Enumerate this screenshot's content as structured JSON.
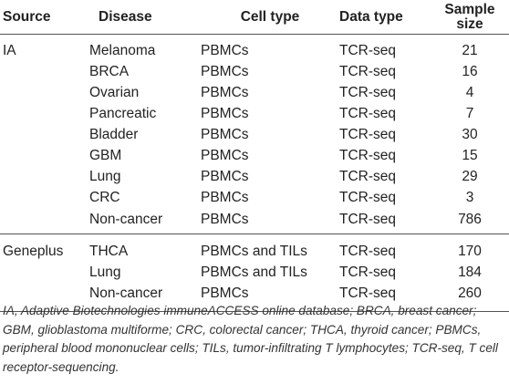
{
  "table": {
    "headers": {
      "source": "Source",
      "disease": "Disease",
      "cell_type": "Cell type",
      "data_type": "Data type",
      "sample_size": "Sample size"
    },
    "groups": [
      {
        "source": "IA",
        "rows": [
          {
            "disease": "Melanoma",
            "cell_type": "PBMCs",
            "data_type": "TCR-seq",
            "sample_size": "21"
          },
          {
            "disease": "BRCA",
            "cell_type": "PBMCs",
            "data_type": "TCR-seq",
            "sample_size": "16"
          },
          {
            "disease": "Ovarian",
            "cell_type": "PBMCs",
            "data_type": "TCR-seq",
            "sample_size": "4"
          },
          {
            "disease": "Pancreatic",
            "cell_type": "PBMCs",
            "data_type": "TCR-seq",
            "sample_size": "7"
          },
          {
            "disease": "Bladder",
            "cell_type": "PBMCs",
            "data_type": "TCR-seq",
            "sample_size": "30"
          },
          {
            "disease": "GBM",
            "cell_type": "PBMCs",
            "data_type": "TCR-seq",
            "sample_size": "15"
          },
          {
            "disease": "Lung",
            "cell_type": "PBMCs",
            "data_type": "TCR-seq",
            "sample_size": "29"
          },
          {
            "disease": "CRC",
            "cell_type": "PBMCs",
            "data_type": "TCR-seq",
            "sample_size": "3"
          },
          {
            "disease": "Non-cancer",
            "cell_type": "PBMCs",
            "data_type": "TCR-seq",
            "sample_size": "786"
          }
        ]
      },
      {
        "source": "Geneplus",
        "rows": [
          {
            "disease": "THCA",
            "cell_type": "PBMCs and TILs",
            "data_type": "TCR-seq",
            "sample_size": "170"
          },
          {
            "disease": "Lung",
            "cell_type": "PBMCs and TILs",
            "data_type": "TCR-seq",
            "sample_size": "184"
          },
          {
            "disease": "Non-cancer",
            "cell_type": "PBMCs",
            "data_type": "TCR-seq",
            "sample_size": "260"
          }
        ]
      }
    ]
  },
  "footnote": "IA, Adaptive Biotechnologies immuneACCESS online database; BRCA, breast cancer; GBM, glioblastoma multiforme; CRC, colorectal cancer; THCA, thyroid cancer; PBMCs, peripheral blood mononuclear cells; TILs, tumor-infiltrating T lymphocytes; TCR-seq, T cell receptor-sequencing."
}
